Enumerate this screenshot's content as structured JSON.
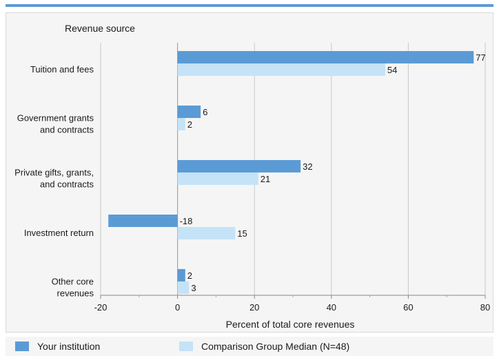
{
  "chart_data": {
    "type": "bar",
    "orientation": "horizontal",
    "y_axis_title": "Revenue source",
    "xlabel": "Percent of total core revenues",
    "xlim": [
      -20,
      80
    ],
    "x_ticks": [
      -20,
      0,
      20,
      40,
      60,
      80
    ],
    "grid": true,
    "legend_position": "bottom",
    "categories": [
      [
        "Tuition and fees"
      ],
      [
        "Government grants",
        "and contracts"
      ],
      [
        "Private gifts, grants,",
        "and contracts"
      ],
      [
        "Investment return"
      ],
      [
        "Other core",
        "revenues"
      ]
    ],
    "series": [
      {
        "name": "Your institution",
        "color": "#5b9bd5",
        "values": [
          77,
          6,
          32,
          -18,
          2
        ]
      },
      {
        "name": "Comparison Group Median (N=48)",
        "color": "#c5e3f7",
        "values": [
          54,
          2,
          21,
          15,
          3
        ]
      }
    ]
  }
}
